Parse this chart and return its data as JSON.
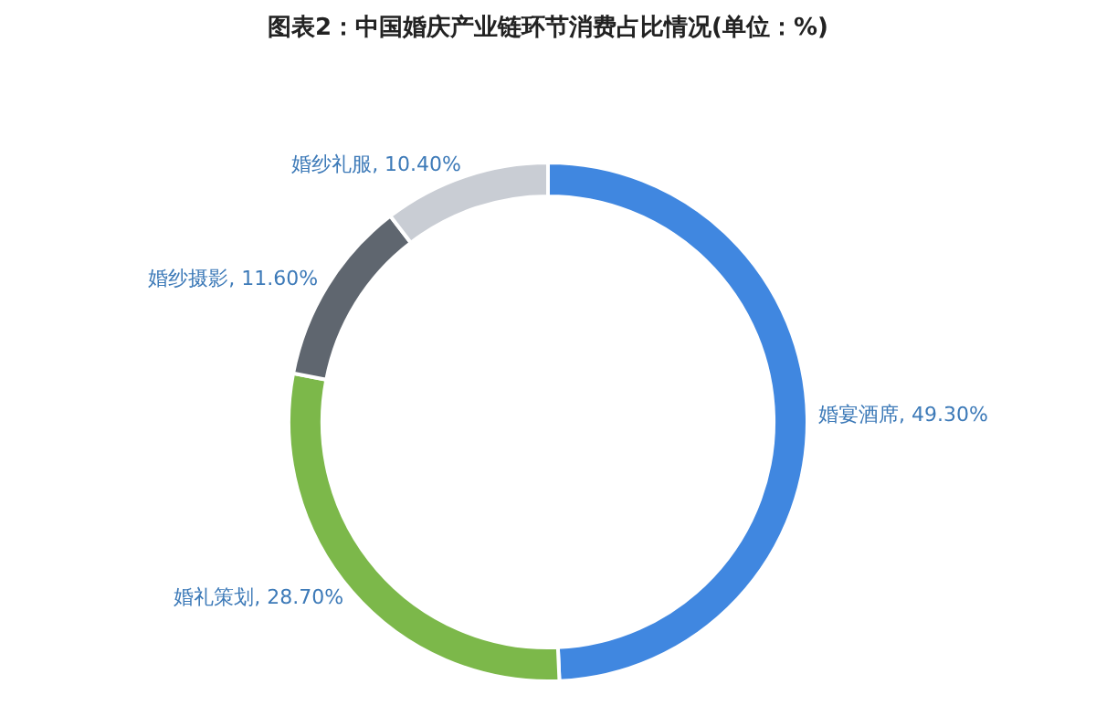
{
  "chart_data": {
    "type": "donut",
    "title": "图表2：中国婚庆产业链环节消费占比情况(单位：%)",
    "categories": [
      "婚宴酒席",
      "婚礼策划",
      "婚纱摄影",
      "婚纱礼服"
    ],
    "values": [
      49.3,
      28.7,
      11.6,
      10.4
    ],
    "value_labels": [
      "49.30%",
      "28.70%",
      "11.60%",
      "10.40%"
    ],
    "colors": [
      "#4087e0",
      "#7cb84a",
      "#5f666f",
      "#c9cdd4"
    ],
    "legend": false
  }
}
